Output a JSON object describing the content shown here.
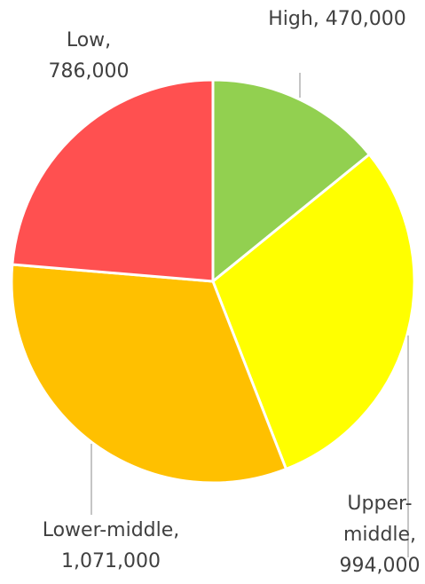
{
  "chart_data": {
    "type": "pie",
    "categories": [
      "High",
      "Upper-middle",
      "Lower-middle",
      "Low"
    ],
    "values": [
      470000,
      994000,
      1071000,
      786000
    ],
    "value_labels": [
      "High, 470,000",
      "Upper-middle, 994,000",
      "Lower-middle, 1,071,000",
      "Low, 786,000"
    ],
    "colors": [
      "#92d050",
      "#ffff00",
      "#ffc000",
      "#ff5050"
    ]
  }
}
